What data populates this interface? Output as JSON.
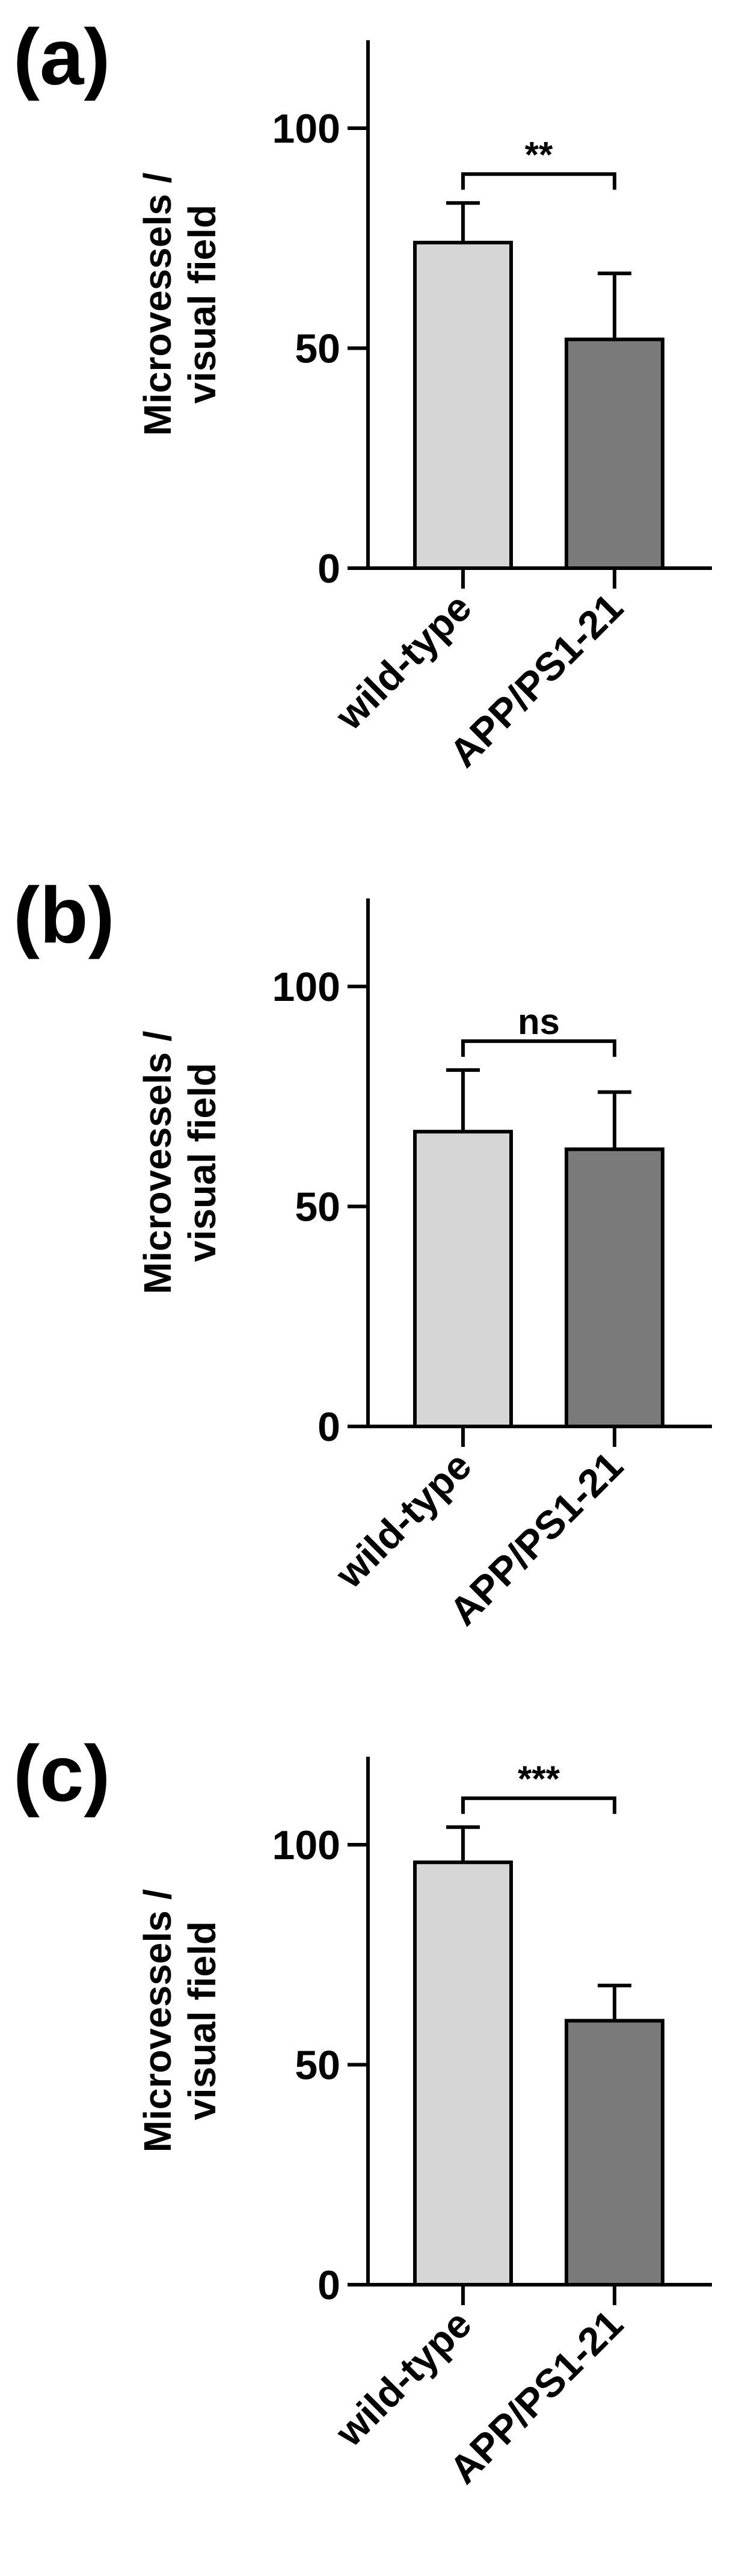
{
  "chart_data": [
    {
      "type": "bar",
      "panel_label": "(a)",
      "ylabel": "Microvessels /\nvisual field",
      "categories": [
        "wild-type",
        "APP/PS1-21"
      ],
      "values": [
        74,
        52
      ],
      "error": [
        9,
        15
      ],
      "bar_colors": [
        "#d6d6d6",
        "#7a7a7a"
      ],
      "yticks": [
        0,
        50,
        100
      ],
      "ylim": [
        0,
        120
      ],
      "significance": "**"
    },
    {
      "type": "bar",
      "panel_label": "(b)",
      "ylabel": "Microvessels /\nvisual field",
      "categories": [
        "wild-type",
        "APP/PS1-21"
      ],
      "values": [
        67,
        63
      ],
      "error": [
        14,
        13
      ],
      "bar_colors": [
        "#d6d6d6",
        "#7a7a7a"
      ],
      "yticks": [
        0,
        50,
        100
      ],
      "ylim": [
        0,
        120
      ],
      "significance": "ns"
    },
    {
      "type": "bar",
      "panel_label": "(c)",
      "ylabel": "Microvessels /\nvisual field",
      "categories": [
        "wild-type",
        "APP/PS1-21"
      ],
      "values": [
        96,
        60
      ],
      "error": [
        8,
        8
      ],
      "bar_colors": [
        "#d6d6d6",
        "#7a7a7a"
      ],
      "yticks": [
        0,
        50,
        100
      ],
      "ylim": [
        0,
        120
      ],
      "significance": "***"
    }
  ]
}
